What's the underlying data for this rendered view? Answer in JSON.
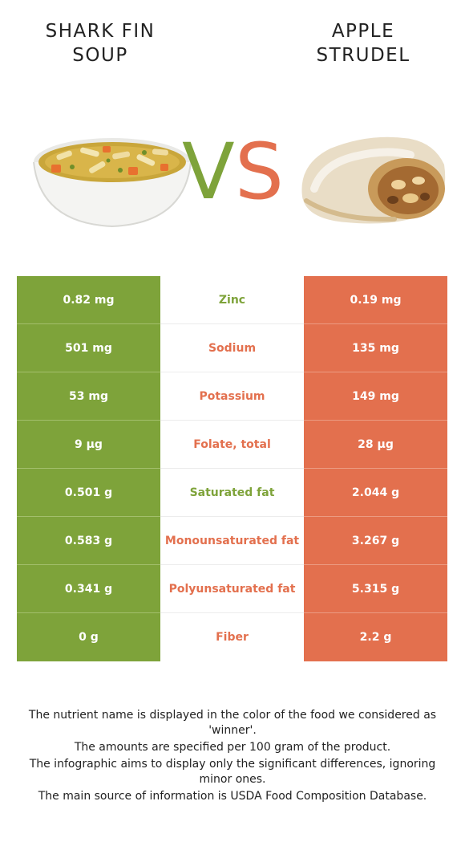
{
  "left_food": {
    "name_line1": "SHARK FIN",
    "name_line2": "SOUP",
    "color": "#7ea33a"
  },
  "right_food": {
    "name_line1": "APPLE",
    "name_line2": "STRUDEL",
    "color": "#e3704e"
  },
  "vs": {
    "v": "V",
    "s": "S"
  },
  "rows": [
    {
      "left": "0.82 mg",
      "nutrient": "Zinc",
      "right": "0.19 mg",
      "winner": "left"
    },
    {
      "left": "501 mg",
      "nutrient": "Sodium",
      "right": "135 mg",
      "winner": "right"
    },
    {
      "left": "53 mg",
      "nutrient": "Potassium",
      "right": "149 mg",
      "winner": "right"
    },
    {
      "left": "9 µg",
      "nutrient": "Folate, total",
      "right": "28 µg",
      "winner": "right"
    },
    {
      "left": "0.501 g",
      "nutrient": "Saturated fat",
      "right": "2.044 g",
      "winner": "left"
    },
    {
      "left": "0.583 g",
      "nutrient": "Monounsaturated fat",
      "right": "3.267 g",
      "winner": "right"
    },
    {
      "left": "0.341 g",
      "nutrient": "Polyunsaturated fat",
      "right": "5.315 g",
      "winner": "right"
    },
    {
      "left": "0 g",
      "nutrient": "Fiber",
      "right": "2.2 g",
      "winner": "right"
    }
  ],
  "notes": [
    "The nutrient name is displayed in the color of the food we considered as 'winner'.",
    "The amounts are specified per 100 gram of the product.",
    "The infographic aims to display only the significant differences, ignoring minor ones.",
    "The main source of information is USDA Food Composition Database."
  ]
}
